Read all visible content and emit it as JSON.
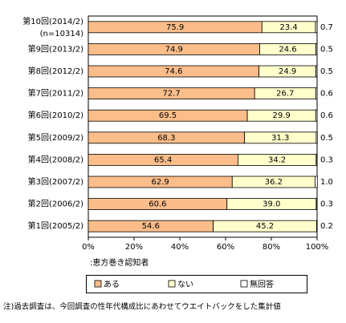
{
  "chart_data": {
    "type": "stacked-barh",
    "categories": [
      "第10回(2014/2)",
      "第9回(2013/2)",
      "第8回(2012/2)",
      "第7回(2011/2)",
      "第6回(2010/2)",
      "第5回(2009/2)",
      "第4回(2008/2)",
      "第3回(2007/2)",
      "第2回(2006/2)",
      "第1回(2005/2)"
    ],
    "sample_note": "(n=10314)",
    "series": [
      {
        "name": "ある",
        "color": "#fbbd8a",
        "values": [
          75.9,
          74.9,
          74.6,
          72.7,
          69.5,
          68.3,
          65.4,
          62.9,
          60.6,
          54.6
        ],
        "value_labels": [
          "75.9",
          "74.9",
          "74.6",
          "72.7",
          "69.5",
          "68.3",
          "65.4",
          "62.9",
          "60.6",
          "54.6"
        ]
      },
      {
        "name": "ない",
        "color": "#ffffcc",
        "values": [
          23.4,
          24.6,
          24.9,
          26.7,
          29.9,
          31.3,
          34.2,
          36.2,
          39.0,
          45.2
        ],
        "value_labels": [
          "23.4",
          "24.6",
          "24.9",
          "26.7",
          "29.9",
          "31.3",
          "34.2",
          "36.2",
          "39.0",
          "45.2"
        ]
      },
      {
        "name": "無回答",
        "color": "#ffffff",
        "values": [
          0.7,
          0.5,
          0.5,
          0.6,
          0.6,
          0.5,
          0.3,
          1.0,
          0.3,
          0.2
        ],
        "value_labels": [
          "0.7",
          "0.5",
          "0.5",
          "0.6",
          "0.6",
          "0.5",
          "0.3",
          "1.0",
          "0.3",
          "0.2"
        ]
      }
    ],
    "xlim": [
      0,
      100
    ],
    "xticks": [
      {
        "value": 0,
        "label": "0%"
      },
      {
        "value": 20,
        "label": "20%"
      },
      {
        "value": 40,
        "label": "40%"
      },
      {
        "value": 60,
        "label": "60%"
      },
      {
        "value": 80,
        "label": "80%"
      },
      {
        "value": 100,
        "label": "100%"
      }
    ],
    "base_note": ":恵方巻き認知者",
    "footnote": "注)過去調査は、今回調査の性年代構成比にあわせてウエイトバックをした集計値"
  }
}
